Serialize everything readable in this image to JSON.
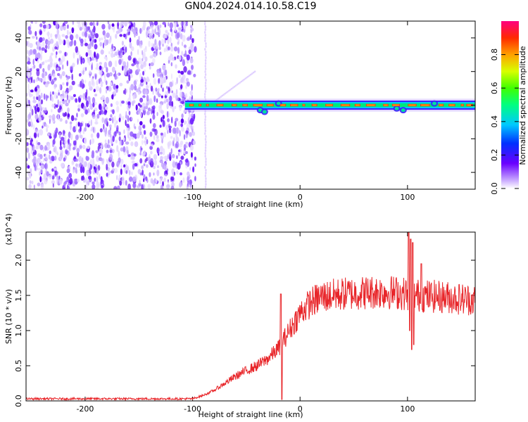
{
  "figure_title": "GN04.2024.014.10.58.C19",
  "chart_data": [
    {
      "type": "heatmap",
      "title": "",
      "xlabel": "Height of straight line (km)",
      "ylabel": "Frequency (Hz)",
      "xlim": [
        -255,
        163
      ],
      "ylim": [
        -50,
        50
      ],
      "xticks": [
        -200,
        -100,
        0,
        100
      ],
      "yticks": [
        -40,
        -20,
        0,
        20,
        40
      ],
      "colorbar": {
        "label": "Normalized spectral amplitude",
        "range": [
          0,
          1
        ],
        "ticks": [
          0.0,
          0.2,
          0.4,
          0.6,
          0.8
        ],
        "tick_labels": [
          "0.0",
          "0.2",
          "0.4",
          "0.6",
          "0.8"
        ]
      },
      "noise_region_x": [
        -255,
        -100
      ],
      "noise_stripe_x": -88,
      "diagonal_streak": {
        "x": [
          -80,
          -42
        ],
        "y": [
          2,
          20
        ]
      },
      "signal_band": {
        "x": [
          -107,
          163
        ],
        "center_hz": 0,
        "half_width_hz": 2
      },
      "signal_wiggles": [
        {
          "x": -37,
          "y": -3
        },
        {
          "x": -33,
          "y": -4
        },
        {
          "x": -20,
          "y": 1
        },
        {
          "x": 90,
          "y": -2
        },
        {
          "x": 96,
          "y": -3
        },
        {
          "x": 125,
          "y": 1
        }
      ]
    },
    {
      "type": "line",
      "title": "",
      "xlabel": "Height of straight line (km)",
      "ylabel": "SNR (10 * v/v)",
      "y_multiplier": "(x10^4)",
      "xlim": [
        -255,
        163
      ],
      "ylim": [
        0,
        24000
      ],
      "xticks": [
        -200,
        -100,
        0,
        100
      ],
      "yticks": [
        0,
        5000,
        10000,
        15000,
        20000
      ],
      "ytick_labels": [
        "0.0",
        "0.5",
        "1.0",
        "1.5",
        "2.0"
      ],
      "series": [
        {
          "color": "#e8262a",
          "x": [
            -255,
            -200,
            -150,
            -100,
            -90,
            -80,
            -70,
            -60,
            -50,
            -40,
            -30,
            -20,
            -10,
            0,
            10,
            20,
            30,
            40,
            50,
            60,
            70,
            80,
            90,
            100,
            110,
            120,
            130,
            140,
            150,
            160,
            163
          ],
          "y": [
            300,
            300,
            300,
            300,
            800,
            1500,
            2500,
            3500,
            4300,
            5000,
            6000,
            7500,
            10000,
            12500,
            14000,
            14800,
            15000,
            15200,
            15300,
            15400,
            15500,
            15500,
            15400,
            15200,
            15000,
            14900,
            14800,
            14700,
            14500,
            14400,
            14300
          ]
        }
      ],
      "spikes": [
        {
          "x": -18,
          "y": 15200,
          "dip": 200
        },
        {
          "x": 101,
          "y": 24000,
          "dip": 10000
        },
        {
          "x": 103,
          "y": 23000,
          "dip": 7300
        },
        {
          "x": 105,
          "y": 22500,
          "dip": 8000
        },
        {
          "x": 113,
          "y": 19500,
          "dip": 13000
        }
      ]
    }
  ]
}
